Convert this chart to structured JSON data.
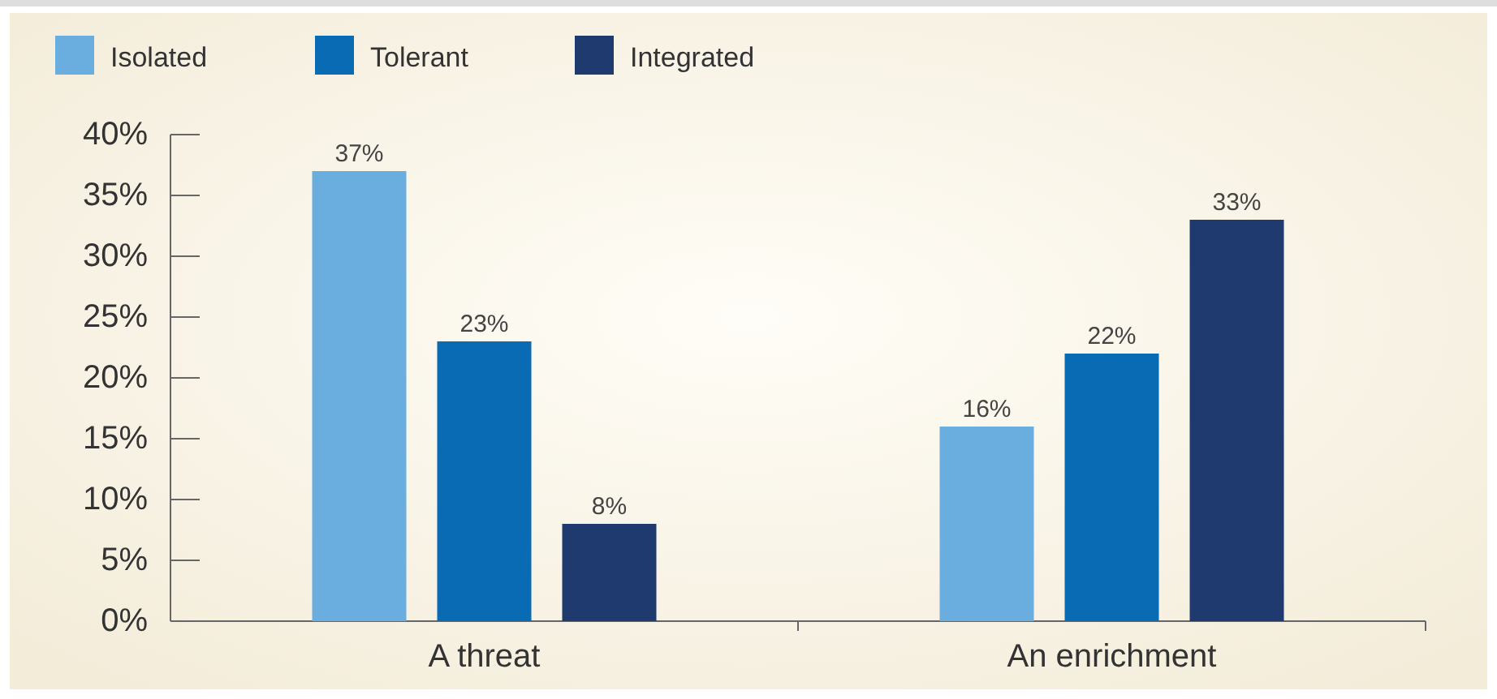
{
  "chart_data": {
    "type": "bar",
    "categories": [
      "A threat",
      "An enrichment"
    ],
    "series": [
      {
        "name": "Isolated",
        "color": "#6aaee0",
        "values": [
          37,
          16
        ],
        "value_labels": [
          "37%",
          "16%"
        ]
      },
      {
        "name": "Tolerant",
        "color": "#0a6bb5",
        "values": [
          23,
          22
        ],
        "value_labels": [
          "23%",
          "22%"
        ]
      },
      {
        "name": "Integrated",
        "color": "#1e3a6e",
        "values": [
          8,
          33
        ],
        "value_labels": [
          "8%",
          "33%"
        ]
      }
    ],
    "ylim": [
      0,
      40
    ],
    "yticks": [
      {
        "value": 0,
        "label": "0%"
      },
      {
        "value": 5,
        "label": "5%"
      },
      {
        "value": 10,
        "label": "10%"
      },
      {
        "value": 15,
        "label": "15%"
      },
      {
        "value": 20,
        "label": "20%"
      },
      {
        "value": 25,
        "label": "25%"
      },
      {
        "value": 30,
        "label": "30%"
      },
      {
        "value": 35,
        "label": "35%"
      },
      {
        "value": 40,
        "label": "40%"
      }
    ],
    "legend": "top left",
    "grid": false
  }
}
